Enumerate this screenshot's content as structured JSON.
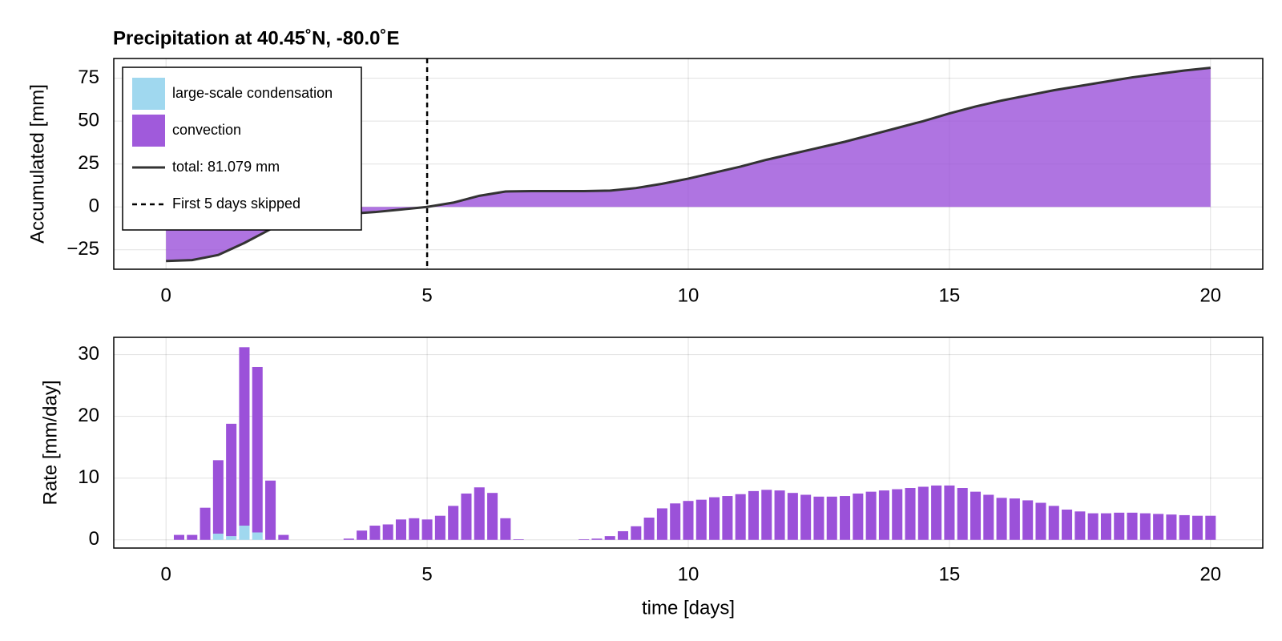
{
  "chart_data": [
    {
      "type": "line",
      "title": "Precipitation at 40.45˚N, -80.0˚E",
      "y_label": "Accumulated [mm]",
      "x": [
        0,
        0.5,
        1,
        1.5,
        2,
        2.5,
        3,
        3.5,
        4,
        4.5,
        5,
        5.5,
        6,
        6.5,
        7,
        7.5,
        8,
        8.5,
        9,
        9.5,
        10,
        10.5,
        11,
        11.5,
        12,
        12.5,
        13,
        13.5,
        14,
        14.5,
        15,
        15.5,
        16,
        16.5,
        17,
        17.5,
        18,
        18.5,
        19,
        19.5,
        20
      ],
      "series": [
        {
          "name": "large-scale condensation",
          "type": "area",
          "color": "#a0d8ef",
          "values": [
            0,
            0,
            0,
            0,
            0,
            0,
            0,
            0,
            0,
            0,
            0,
            0,
            0,
            0,
            0,
            0,
            0,
            0,
            0,
            0,
            0,
            0,
            0,
            0,
            0,
            0,
            0,
            0,
            0,
            0,
            0,
            0,
            0,
            0,
            0,
            0,
            0,
            0,
            0,
            0,
            0
          ]
        },
        {
          "name": "convection",
          "type": "area",
          "color": "#9b51d9",
          "values": [
            -31.5,
            -31,
            -28,
            -21,
            -13,
            -8,
            -5.5,
            -4,
            -3,
            -1.5,
            0,
            2.5,
            6.5,
            9,
            9.2,
            9.2,
            9.2,
            9.5,
            11,
            13.5,
            16.5,
            20,
            23.5,
            27.5,
            31,
            34.5,
            38,
            42,
            46,
            50,
            54.5,
            58.5,
            62,
            65,
            68,
            70.5,
            73,
            75.5,
            77.5,
            79.5,
            81.08
          ]
        },
        {
          "name": "total: 81.079 mm",
          "type": "line",
          "color": "#333333",
          "values": [
            -31.5,
            -31,
            -28,
            -21,
            -13,
            -8,
            -5.5,
            -4,
            -3,
            -1.5,
            0,
            2.5,
            6.5,
            9,
            9.2,
            9.2,
            9.2,
            9.5,
            11,
            13.5,
            16.5,
            20,
            23.5,
            27.5,
            31,
            34.5,
            38,
            42,
            46,
            50,
            54.5,
            58.5,
            62,
            65,
            68,
            70.5,
            73,
            75.5,
            77.5,
            79.5,
            81.08
          ]
        }
      ],
      "vline": {
        "x": 5,
        "label": "First 5 days skipped"
      },
      "legend": "top-left",
      "xlim": [
        -1,
        21
      ],
      "xticks": [
        0,
        5,
        10,
        15,
        20
      ],
      "ylim": [
        -36.3,
        86.5
      ],
      "yticks": [
        {
          "value": -25,
          "label": "−25"
        },
        0,
        25,
        50,
        75
      ],
      "grid": true
    },
    {
      "type": "bar",
      "x_label": "time [days]",
      "y_label": "Rate [mm/day]",
      "x": [
        0.25,
        0.5,
        0.75,
        1,
        1.25,
        1.5,
        1.75,
        2,
        2.25,
        2.5,
        2.75,
        3,
        3.25,
        3.5,
        3.75,
        4,
        4.25,
        4.5,
        4.75,
        5,
        5.25,
        5.5,
        5.75,
        6,
        6.25,
        6.5,
        6.75,
        7,
        7.25,
        7.5,
        7.75,
        8,
        8.25,
        8.5,
        8.75,
        9,
        9.25,
        9.5,
        9.75,
        10,
        10.25,
        10.5,
        10.75,
        11,
        11.25,
        11.5,
        11.75,
        12,
        12.25,
        12.5,
        12.75,
        13,
        13.25,
        13.5,
        13.75,
        14,
        14.25,
        14.5,
        14.75,
        15,
        15.25,
        15.5,
        15.75,
        16,
        16.25,
        16.5,
        16.75,
        17,
        17.25,
        17.5,
        17.75,
        18,
        18.25,
        18.5,
        18.75,
        19,
        19.25,
        19.5,
        19.75,
        20
      ],
      "series": [
        {
          "name": "large-scale condensation",
          "color": "#a0d8ef",
          "values": [
            0,
            0,
            0,
            1.0,
            0.6,
            2.3,
            1.2,
            0,
            0,
            0,
            0,
            0,
            0,
            0,
            0,
            0,
            0,
            0,
            0,
            0,
            0,
            0,
            0,
            0,
            0,
            0,
            0,
            0,
            0,
            0,
            0,
            0,
            0,
            0,
            0,
            0,
            0,
            0,
            0,
            0,
            0,
            0,
            0,
            0,
            0,
            0,
            0,
            0,
            0,
            0,
            0,
            0,
            0,
            0,
            0,
            0,
            0,
            0,
            0,
            0,
            0,
            0,
            0,
            0,
            0,
            0,
            0,
            0,
            0,
            0,
            0,
            0,
            0,
            0,
            0,
            0,
            0,
            0,
            0,
            0
          ]
        },
        {
          "name": "convection",
          "color": "#9b51d9",
          "values": [
            0.8,
            0.8,
            5.2,
            11.9,
            18.2,
            28.9,
            26.8,
            9.6,
            0.8,
            0,
            0,
            0,
            0,
            0.2,
            1.5,
            2.3,
            2.5,
            3.3,
            3.5,
            3.3,
            3.9,
            5.5,
            7.5,
            8.5,
            7.6,
            3.5,
            0.1,
            0,
            0,
            0,
            0,
            0.1,
            0.2,
            0.6,
            1.4,
            2.2,
            3.6,
            5.1,
            5.9,
            6.3,
            6.5,
            6.9,
            7.1,
            7.4,
            7.9,
            8.1,
            8.0,
            7.6,
            7.3,
            7.0,
            7.0,
            7.1,
            7.5,
            7.8,
            8.0,
            8.2,
            8.4,
            8.6,
            8.8,
            8.8,
            8.4,
            7.8,
            7.3,
            6.8,
            6.7,
            6.4,
            6.0,
            5.5,
            4.9,
            4.6,
            4.3,
            4.3,
            4.4,
            4.4,
            4.3,
            4.2,
            4.1,
            4.0,
            3.9,
            3.9
          ]
        }
      ],
      "bar_width": 0.2,
      "xlim": [
        -1,
        21
      ],
      "xticks": [
        0,
        5,
        10,
        15,
        20
      ],
      "ylim": [
        -1.33,
        32.8
      ],
      "yticks": [
        0,
        10,
        20,
        30
      ],
      "grid": true
    }
  ]
}
